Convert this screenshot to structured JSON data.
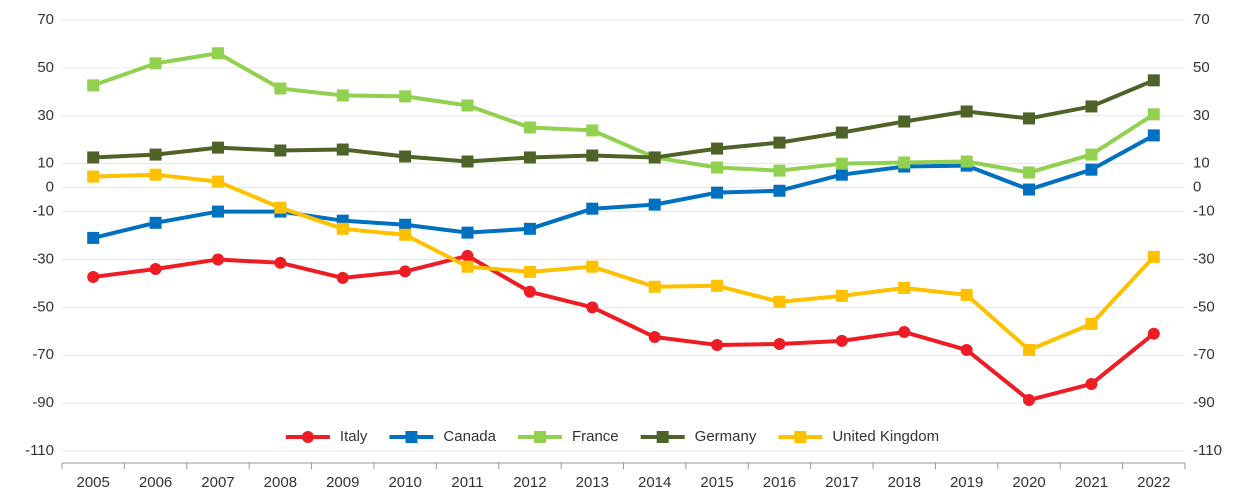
{
  "chart_data": {
    "type": "line",
    "categories": [
      "2005",
      "2006",
      "2007",
      "2008",
      "2009",
      "2010",
      "2011",
      "2012",
      "2013",
      "2014",
      "2015",
      "2016",
      "2017",
      "2018",
      "2019",
      "2020",
      "2021",
      "2022"
    ],
    "series": [
      {
        "name": "Italy",
        "color": "#ee1c25",
        "marker": "circle",
        "values": [
          -37.3,
          -34,
          -30,
          -31.4,
          -37.7,
          -35,
          -28.5,
          -43.5,
          -50,
          -62.4,
          -65.7,
          -65.3,
          -64,
          -60.3,
          -67.8,
          -88.7,
          -82,
          -61
        ]
      },
      {
        "name": "Canada",
        "color": "#0070c0",
        "marker": "square",
        "values": [
          -21,
          -14.7,
          -10,
          -10,
          -13.8,
          -15.5,
          -18.8,
          -17.2,
          -8.8,
          -7.1,
          -2.1,
          -1.3,
          5.4,
          8.8,
          9.2,
          -0.8,
          7.5,
          21.8
        ]
      },
      {
        "name": "France",
        "color": "#92d050",
        "marker": "square",
        "values": [
          42.7,
          51.9,
          56.1,
          41.4,
          38.5,
          38.1,
          34.3,
          25.1,
          23.9,
          12.6,
          8.4,
          7.1,
          10,
          10.5,
          10.9,
          6.3,
          13.8,
          30.6
        ]
      },
      {
        "name": "Germany",
        "color": "#4f6228",
        "marker": "square",
        "values": [
          12.6,
          13.8,
          16.7,
          15.5,
          15.9,
          13,
          10.9,
          12.6,
          13.4,
          12.6,
          16.3,
          18.8,
          23,
          27.6,
          31.8,
          28.9,
          33.9,
          44.8
        ]
      },
      {
        "name": "United Kingdom",
        "color": "#ffc000",
        "marker": "square",
        "values": [
          4.6,
          5.4,
          2.5,
          -8.4,
          -17.2,
          -19.7,
          -33,
          -35.2,
          -33,
          -41.4,
          -41,
          -47.7,
          -45.2,
          -41.9,
          -44.8,
          -67.8,
          -56.9,
          -28.9
        ]
      }
    ],
    "ylim": [
      -115,
      70
    ],
    "yticks": [
      70,
      50,
      30,
      10,
      0,
      -10,
      -30,
      -50,
      -70,
      -90,
      -110
    ],
    "y2lim": [
      -115,
      70
    ],
    "y2ticks": [
      70,
      50,
      30,
      10,
      0,
      -10,
      -30,
      -50,
      -70,
      -90,
      -110
    ],
    "grid": true,
    "legend": "bottom"
  }
}
